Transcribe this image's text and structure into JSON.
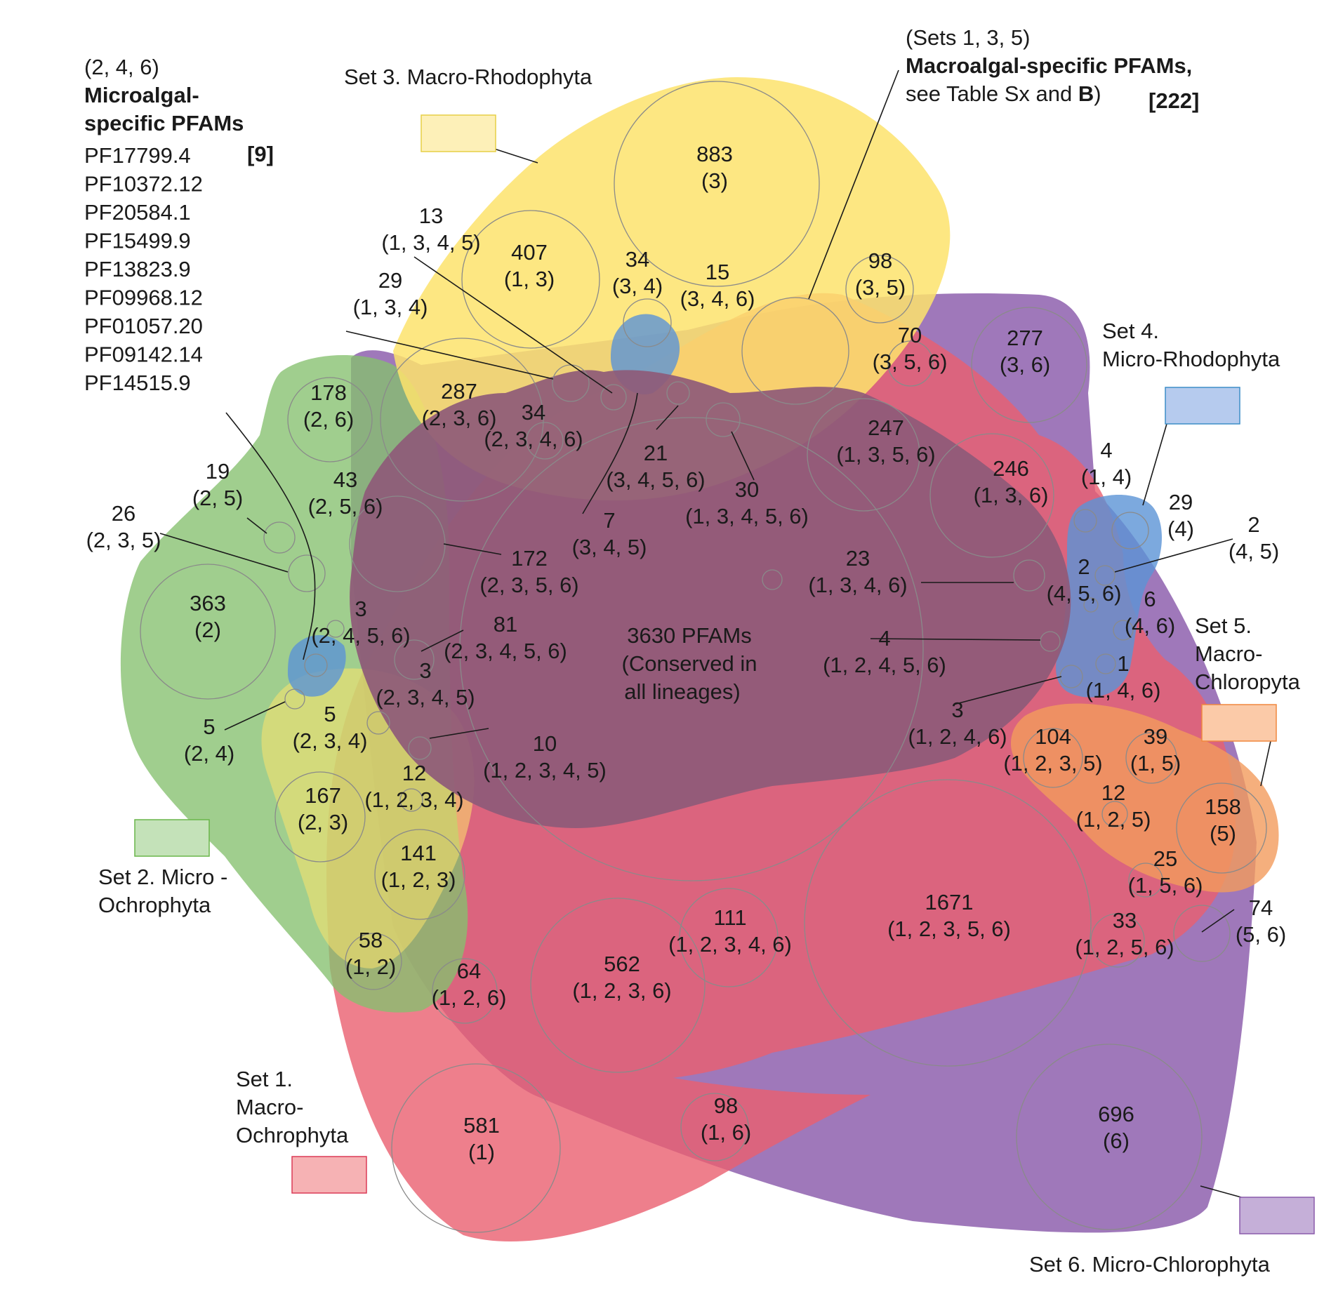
{
  "colors": {
    "set1": "#ea5f6f",
    "set2": "#85c06e",
    "set3": "#fde36c",
    "set4": "#5b93d6",
    "set5": "#f39b5d",
    "set6": "#8a5aab",
    "core": "#8e5a78"
  },
  "sets": {
    "set1": {
      "line1": "Set 1.",
      "line2": "Macro-",
      "line3": "Ochrophyta"
    },
    "set2": {
      "line1": "Set 2. Micro -",
      "line2": "Ochrophyta"
    },
    "set3": {
      "line1": "Set 3. Macro-Rhodophyta"
    },
    "set4": {
      "line1": "Set 4.",
      "line2": "Micro-Rhodophyta"
    },
    "set5": {
      "line1": "Set 5.",
      "line2": "Macro-",
      "line3": "Chloropyta"
    },
    "set6": {
      "line1": "Set 6. Micro-Chlorophyta"
    }
  },
  "micro_box": {
    "sets": "(2, 4, 6)",
    "title1": "Microalgal-",
    "title2": "specific PFAMs",
    "count": "[9]",
    "pfams": [
      "PF17799.4",
      "PF10372.12",
      "PF20584.1",
      "PF15499.9",
      "PF13823.9",
      "PF09968.12",
      "PF01057.20",
      "PF09142.14",
      "PF14515.9"
    ]
  },
  "macro_box": {
    "sets": "(Sets 1, 3, 5)",
    "title": "Macroalgal-specific PFAMs,",
    "note_pre": "see Table Sx and ",
    "note_bold": "B",
    "note_post": ")",
    "count": "[222]"
  },
  "core": {
    "line1": "3630 PFAMs",
    "line2": "(Conserved in",
    "line3": "all lineages)"
  },
  "regions": [
    {
      "count": "883",
      "sets": "(3)"
    },
    {
      "count": "407",
      "sets": "(1, 3)"
    },
    {
      "count": "34",
      "sets": "(3, 4)"
    },
    {
      "count": "15",
      "sets": "(3, 4, 6)"
    },
    {
      "count": "98",
      "sets": "(3, 5)"
    },
    {
      "count": "70",
      "sets": "(3, 5, 6)"
    },
    {
      "count": "277",
      "sets": "(3, 6)"
    },
    {
      "count": "13",
      "sets": "(1, 3, 4, 5)"
    },
    {
      "count": "29",
      "sets": "(1, 3, 4)"
    },
    {
      "count": "178",
      "sets": "(2, 6)"
    },
    {
      "count": "287",
      "sets": "(2, 3, 6)"
    },
    {
      "count": "34",
      "sets": "(2, 3, 4, 6)"
    },
    {
      "count": "21",
      "sets": "(3, 4, 5, 6)"
    },
    {
      "count": "30",
      "sets": "(1, 3, 4, 5, 6)"
    },
    {
      "count": "247",
      "sets": "(1, 3, 5, 6)"
    },
    {
      "count": "246",
      "sets": "(1, 3, 6)"
    },
    {
      "count": "4",
      "sets": "(1, 4)"
    },
    {
      "count": "29",
      "sets": "(4)"
    },
    {
      "count": "2",
      "sets": "(4, 5)"
    },
    {
      "count": "2",
      "sets": "(4, 5, 6)"
    },
    {
      "count": "6",
      "sets": "(4, 6)"
    },
    {
      "count": "1",
      "sets": "(1, 4, 6)"
    },
    {
      "count": "19",
      "sets": "(2, 5)"
    },
    {
      "count": "26",
      "sets": "(2, 3, 5)"
    },
    {
      "count": "43",
      "sets": "(2, 5, 6)"
    },
    {
      "count": "172",
      "sets": "(2, 3, 5, 6)"
    },
    {
      "count": "7",
      "sets": "(3, 4, 5)"
    },
    {
      "count": "23",
      "sets": "(1, 3, 4, 6)"
    },
    {
      "count": "363",
      "sets": "(2)"
    },
    {
      "count": "3",
      "sets": "(2, 4, 5, 6)"
    },
    {
      "count": "81",
      "sets": "(2, 3, 4, 5, 6)"
    },
    {
      "count": "3",
      "sets": "(2, 3, 4, 5)"
    },
    {
      "count": "4",
      "sets": "(1, 2, 4, 5, 6)"
    },
    {
      "count": "3",
      "sets": "(1, 2, 4, 6)"
    },
    {
      "count": "5",
      "sets": "(2, 4)"
    },
    {
      "count": "5",
      "sets": "(2, 3, 4)"
    },
    {
      "count": "10",
      "sets": "(1, 2, 3, 4, 5)"
    },
    {
      "count": "12",
      "sets": "(1, 2, 3, 4)"
    },
    {
      "count": "167",
      "sets": "(2, 3)"
    },
    {
      "count": "141",
      "sets": "(1, 2, 3)"
    },
    {
      "count": "104",
      "sets": "(1, 2, 3, 5)"
    },
    {
      "count": "39",
      "sets": "(1, 5)"
    },
    {
      "count": "12",
      "sets": "(1, 2, 5)"
    },
    {
      "count": "158",
      "sets": "(5)"
    },
    {
      "count": "25",
      "sets": "(1, 5, 6)"
    },
    {
      "count": "74",
      "sets": "(5, 6)"
    },
    {
      "count": "33",
      "sets": "(1, 2, 5, 6)"
    },
    {
      "count": "1671",
      "sets": "(1, 2, 3, 5, 6)"
    },
    {
      "count": "111",
      "sets": "(1, 2, 3, 4, 6)"
    },
    {
      "count": "562",
      "sets": "(1, 2, 3, 6)"
    },
    {
      "count": "58",
      "sets": "(1, 2)"
    },
    {
      "count": "64",
      "sets": "(1, 2, 6)"
    },
    {
      "count": "581",
      "sets": "(1)"
    },
    {
      "count": "98",
      "sets": "(1, 6)"
    },
    {
      "count": "696",
      "sets": "(6)"
    }
  ]
}
